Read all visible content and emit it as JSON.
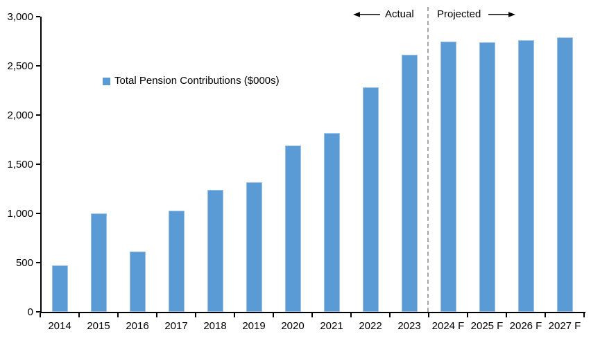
{
  "chart_data": {
    "type": "bar",
    "title": "",
    "legend": "Total Pension Contributions ($000s)",
    "categories": [
      "2014",
      "2015",
      "2016",
      "2017",
      "2018",
      "2019",
      "2020",
      "2021",
      "2022",
      "2023",
      "2024 F",
      "2025 F",
      "2026 F",
      "2027 F"
    ],
    "values": [
      470,
      1000,
      610,
      1030,
      1240,
      1320,
      1690,
      1820,
      2280,
      2610,
      2750,
      2740,
      2760,
      2790
    ],
    "xlabel": "",
    "ylabel": "",
    "ylim": [
      0,
      3000
    ],
    "ytick_step": 500,
    "ytick_labels": [
      "0",
      "500",
      "1,000",
      "1,500",
      "2,000",
      "2,500",
      "3,000"
    ],
    "grid": false,
    "legend_position": "upper-left-inside",
    "bar_color": "#5B9BD5",
    "bar_border_color": "#9DC3E6",
    "axis_color": "#000000",
    "divider_color": "#A6A6A6",
    "annotations": {
      "actual_label": "Actual",
      "projected_label": "Projected",
      "divider_after_category": "2023"
    }
  }
}
